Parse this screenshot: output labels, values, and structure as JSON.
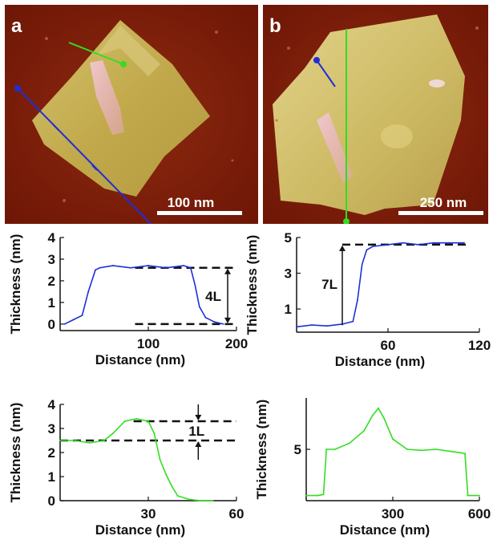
{
  "figure": {
    "panel_a": {
      "letter": "a",
      "scale_bar": "100 nm"
    },
    "panel_b": {
      "letter": "b",
      "scale_bar": "250 nm"
    }
  },
  "colors": {
    "afm_background": "#7a1a08",
    "flake_yellow": "#c9b25a",
    "blue_profile": "#1f2fd6",
    "green_profile": "#33dd22",
    "highlight_pink": "#e8b0b8"
  },
  "chart_data": [
    {
      "type": "line",
      "id": "blue_a",
      "xlabel": "Distance (nm)",
      "ylabel": "Thickness (nm)",
      "xlim": [
        0,
        200
      ],
      "ylim": [
        -0.3,
        4
      ],
      "xticks": [
        100,
        200
      ],
      "yticks": [
        0,
        1,
        2,
        3,
        4
      ],
      "color": "#1f2fd6",
      "x": [
        5,
        15,
        25,
        32,
        40,
        45,
        60,
        80,
        100,
        120,
        140,
        148,
        153,
        158,
        165,
        175,
        185
      ],
      "y": [
        0,
        0.2,
        0.4,
        1.5,
        2.5,
        2.6,
        2.7,
        2.6,
        2.7,
        2.6,
        2.7,
        2.6,
        1.8,
        0.8,
        0.3,
        0.1,
        0
      ],
      "annotation": "4L",
      "dashed_levels": [
        2.6,
        0
      ]
    },
    {
      "type": "line",
      "id": "green_b",
      "xlabel": "Distance (nm)",
      "ylabel": "Thickness (nm)",
      "xlim": [
        0,
        120
      ],
      "ylim": [
        -0.3,
        5
      ],
      "xticks": [
        60,
        120
      ],
      "yticks": [
        1,
        3,
        5
      ],
      "color": "#1f2fd6",
      "x": [
        0,
        10,
        20,
        30,
        37,
        40,
        43,
        46,
        50,
        60,
        70,
        80,
        90,
        100,
        110
      ],
      "y": [
        0,
        0.1,
        0.05,
        0.15,
        0.3,
        1.5,
        3.5,
        4.3,
        4.5,
        4.6,
        4.7,
        4.6,
        4.7,
        4.7,
        4.7
      ],
      "annotation": "7L",
      "dashed_levels": [
        4.6
      ]
    },
    {
      "type": "line",
      "id": "green_a",
      "xlabel": "Distance (nm)",
      "ylabel": "Thickness (nm)",
      "xlim": [
        0,
        60
      ],
      "ylim": [
        0,
        4
      ],
      "xticks": [
        30,
        60
      ],
      "yticks": [
        0,
        1,
        2,
        3,
        4
      ],
      "color": "#33dd22",
      "x": [
        0,
        5,
        10,
        15,
        18,
        22,
        26,
        30,
        32,
        34,
        36,
        38,
        40,
        44,
        48,
        52
      ],
      "y": [
        2.5,
        2.5,
        2.4,
        2.5,
        2.8,
        3.3,
        3.4,
        3.3,
        2.8,
        1.7,
        1.1,
        0.6,
        0.2,
        0.05,
        0,
        0
      ],
      "annotation": "1L",
      "dashed_levels": [
        3.3,
        2.5
      ]
    },
    {
      "type": "line",
      "id": "blue_b",
      "xlabel": "Distance (nm)",
      "ylabel": "Thickness (nm)",
      "xlim": [
        0,
        600
      ],
      "ylim": [
        0,
        10
      ],
      "xticks": [
        300,
        600
      ],
      "yticks": [
        5
      ],
      "color": "#33dd22",
      "x": [
        0,
        40,
        60,
        70,
        100,
        150,
        200,
        230,
        250,
        270,
        300,
        350,
        400,
        450,
        500,
        550,
        560,
        600
      ],
      "y": [
        0.5,
        0.5,
        0.6,
        5,
        5,
        5.6,
        6.8,
        8.3,
        9,
        8,
        6,
        5,
        4.9,
        5,
        4.8,
        4.6,
        0.5,
        0.5
      ],
      "annotation": "",
      "dashed_levels": []
    }
  ]
}
